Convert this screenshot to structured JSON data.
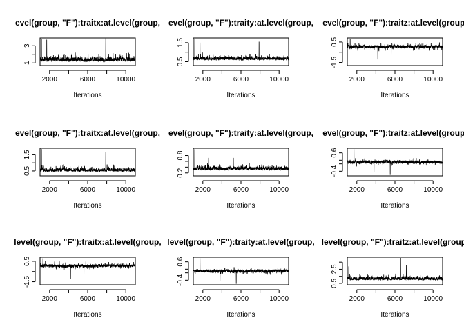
{
  "chart_data": [
    {
      "type": "line",
      "title": "evel(group, \"F\"):traitx:at.level(group,",
      "xlabel": "Iterations",
      "ylabel": "",
      "xlim": [
        1000,
        11000
      ],
      "ylim": [
        0.7,
        3.9
      ],
      "x_ticks": [
        2000,
        6000,
        10000
      ],
      "x_tick_labels": [
        "2000",
        "6000",
        "10000"
      ],
      "y_ticks": [
        1,
        2,
        3
      ],
      "y_tick_labels": [
        "1",
        "",
        "3"
      ],
      "trace": {
        "base": 1.25,
        "noise": 0.35,
        "spike_rate": 0.06,
        "spike_size": 1.3,
        "skew": "up",
        "floor": 0.85
      },
      "spikes": [
        {
          "x": 1150,
          "y": 3.8
        },
        {
          "x": 1700,
          "y": 3.7
        },
        {
          "x": 7900,
          "y": 3.85
        }
      ],
      "series": [
        {
          "x_start": 1001,
          "x_end": 11000,
          "y_estimated_summary": {
            "min": 0.85,
            "median": 1.2,
            "max": 3.85
          }
        }
      ]
    },
    {
      "type": "line",
      "title": "evel(group, \"F\"):traity:at.level(group,",
      "xlabel": "Iterations",
      "ylabel": "",
      "xlim": [
        1000,
        11000
      ],
      "ylim": [
        0.3,
        1.75
      ],
      "x_ticks": [
        2000,
        6000,
        10000
      ],
      "x_tick_labels": [
        "2000",
        "6000",
        "10000"
      ],
      "y_ticks": [
        0.5,
        1.0,
        1.5
      ],
      "y_tick_labels": [
        "0.5",
        "",
        "1.5"
      ],
      "trace": {
        "base": 0.62,
        "noise": 0.12,
        "spike_rate": 0.06,
        "spike_size": 0.45,
        "skew": "up",
        "floor": 0.38
      },
      "spikes": [
        {
          "x": 1150,
          "y": 1.72
        },
        {
          "x": 1700,
          "y": 1.5
        },
        {
          "x": 7900,
          "y": 1.55
        }
      ],
      "series": [
        {
          "x_start": 1001,
          "x_end": 11000,
          "y_estimated_summary": {
            "min": 0.38,
            "median": 0.6,
            "max": 1.72
          }
        }
      ]
    },
    {
      "type": "line",
      "title": "evel(group, \"F\"):traitz:at.level(group,",
      "xlabel": "Iterations",
      "ylabel": "",
      "xlim": [
        1000,
        11000
      ],
      "ylim": [
        -1.8,
        0.9
      ],
      "x_ticks": [
        2000,
        6000,
        10000
      ],
      "x_tick_labels": [
        "2000",
        "6000",
        "10000"
      ],
      "y_ticks": [
        -1.5,
        -0.5,
        0.5
      ],
      "y_tick_labels": [
        "-1.5",
        "",
        "0.5"
      ],
      "trace": {
        "base": 0.05,
        "noise": 0.22,
        "spike_rate": 0.05,
        "spike_size": 0.7,
        "skew": "both",
        "floor": -1.75
      },
      "spikes": [
        {
          "x": 1300,
          "y": 0.8
        },
        {
          "x": 5600,
          "y": -1.75
        },
        {
          "x": 4200,
          "y": -1.2
        }
      ],
      "series": [
        {
          "x_start": 1001,
          "x_end": 11000,
          "y_estimated_summary": {
            "min": -1.75,
            "median": 0.05,
            "max": 0.8
          }
        }
      ]
    },
    {
      "type": "line",
      "title": "evel(group, \"F\"):traitx:at.level(group,",
      "xlabel": "Iterations",
      "ylabel": "",
      "xlim": [
        1000,
        11000
      ],
      "ylim": [
        0.2,
        1.9
      ],
      "x_ticks": [
        2000,
        6000,
        10000
      ],
      "x_tick_labels": [
        "2000",
        "6000",
        "10000"
      ],
      "y_ticks": [
        0.5,
        1.0,
        1.5
      ],
      "y_tick_labels": [
        "0.5",
        "",
        "1.5"
      ],
      "trace": {
        "base": 0.5,
        "noise": 0.13,
        "spike_rate": 0.06,
        "spike_size": 0.55,
        "skew": "up",
        "floor": 0.25
      },
      "spikes": [
        {
          "x": 1150,
          "y": 1.85
        },
        {
          "x": 7900,
          "y": 1.65
        }
      ],
      "series": [
        {
          "x_start": 1001,
          "x_end": 11000,
          "y_estimated_summary": {
            "min": 0.25,
            "median": 0.5,
            "max": 1.85
          }
        }
      ]
    },
    {
      "type": "line",
      "title": "evel(group, \"F\"):traity:at.level(group,",
      "xlabel": "Iterations",
      "ylabel": "",
      "xlim": [
        1000,
        11000
      ],
      "ylim": [
        0.1,
        1.05
      ],
      "x_ticks": [
        2000,
        6000,
        10000
      ],
      "x_tick_labels": [
        "2000",
        "6000",
        "10000"
      ],
      "y_ticks": [
        0.2,
        0.4,
        0.6,
        0.8
      ],
      "y_tick_labels": [
        "0.2",
        "",
        "",
        "0.8"
      ],
      "trace": {
        "base": 0.32,
        "noise": 0.08,
        "spike_rate": 0.06,
        "spike_size": 0.3,
        "skew": "up",
        "floor": 0.14
      },
      "spikes": [
        {
          "x": 1150,
          "y": 1.02
        },
        {
          "x": 2600,
          "y": 0.72
        },
        {
          "x": 5200,
          "y": 0.72
        }
      ],
      "series": [
        {
          "x_start": 1001,
          "x_end": 11000,
          "y_estimated_summary": {
            "min": 0.14,
            "median": 0.3,
            "max": 1.02
          }
        }
      ]
    },
    {
      "type": "line",
      "title": "evel(group, \"F\"):traitz:at.level(group,",
      "xlabel": "Iterations",
      "ylabel": "",
      "xlim": [
        1000,
        11000
      ],
      "ylim": [
        -0.65,
        0.85
      ],
      "x_ticks": [
        2000,
        6000,
        10000
      ],
      "x_tick_labels": [
        "2000",
        "6000",
        "10000"
      ],
      "y_ticks": [
        -0.4,
        0.0,
        0.2,
        0.6
      ],
      "y_tick_labels": [
        "-0.4",
        "",
        "",
        "0.6"
      ],
      "trace": {
        "base": 0.1,
        "noise": 0.13,
        "spike_rate": 0.05,
        "spike_size": 0.35,
        "skew": "both",
        "floor": -0.6
      },
      "spikes": [
        {
          "x": 1700,
          "y": 0.8
        },
        {
          "x": 5500,
          "y": -0.6
        },
        {
          "x": 3800,
          "y": -0.45
        }
      ],
      "series": [
        {
          "x_start": 1001,
          "x_end": 11000,
          "y_estimated_summary": {
            "min": -0.6,
            "median": 0.1,
            "max": 0.8
          }
        }
      ]
    },
    {
      "type": "line",
      "title": "level(group, \"F\"):traitx:at.level(group,",
      "xlabel": "Iterations",
      "ylabel": "",
      "xlim": [
        1000,
        11000
      ],
      "ylim": [
        -1.8,
        0.9
      ],
      "x_ticks": [
        2000,
        6000,
        10000
      ],
      "x_tick_labels": [
        "2000",
        "6000",
        "10000"
      ],
      "y_ticks": [
        -1.5,
        -0.5,
        0.5
      ],
      "y_tick_labels": [
        "-1.5",
        "",
        "0.5"
      ],
      "trace": {
        "base": 0.05,
        "noise": 0.22,
        "spike_rate": 0.05,
        "spike_size": 0.7,
        "skew": "both",
        "floor": -1.75
      },
      "spikes": [
        {
          "x": 1300,
          "y": 0.8
        },
        {
          "x": 5600,
          "y": -1.75
        },
        {
          "x": 4200,
          "y": -1.2
        }
      ],
      "series": [
        {
          "x_start": 1001,
          "x_end": 11000,
          "y_estimated_summary": {
            "min": -1.75,
            "median": 0.05,
            "max": 0.8
          }
        }
      ]
    },
    {
      "type": "line",
      "title": "level(group, \"F\"):traity:at.level(group,",
      "xlabel": "Iterations",
      "ylabel": "",
      "xlim": [
        1000,
        11000
      ],
      "ylim": [
        -0.65,
        0.85
      ],
      "x_ticks": [
        2000,
        6000,
        10000
      ],
      "x_tick_labels": [
        "2000",
        "6000",
        "10000"
      ],
      "y_ticks": [
        -0.4,
        0.0,
        0.2,
        0.6
      ],
      "y_tick_labels": [
        "-0.4",
        "",
        "",
        "0.6"
      ],
      "trace": {
        "base": 0.1,
        "noise": 0.13,
        "spike_rate": 0.05,
        "spike_size": 0.35,
        "skew": "both",
        "floor": -0.6
      },
      "spikes": [
        {
          "x": 1700,
          "y": 0.8
        },
        {
          "x": 5500,
          "y": -0.6
        },
        {
          "x": 3800,
          "y": -0.45
        }
      ],
      "series": [
        {
          "x_start": 1001,
          "x_end": 11000,
          "y_estimated_summary": {
            "min": -0.6,
            "median": 0.1,
            "max": 0.8
          }
        }
      ]
    },
    {
      "type": "line",
      "title": "level(group, \"F\"):traitz:at.level(group,",
      "xlabel": "Iterations",
      "ylabel": "",
      "xlim": [
        1000,
        11000
      ],
      "ylim": [
        0.3,
        4.2
      ],
      "x_ticks": [
        2000,
        6000,
        10000
      ],
      "x_tick_labels": [
        "2000",
        "6000",
        "10000"
      ],
      "y_ticks": [
        0.5,
        1.5,
        2.5,
        3.5
      ],
      "y_tick_labels": [
        "0.5",
        "",
        "2.5",
        ""
      ],
      "trace": {
        "base": 1.05,
        "noise": 0.3,
        "spike_rate": 0.06,
        "spike_size": 1.1,
        "skew": "up",
        "floor": 0.45
      },
      "spikes": [
        {
          "x": 6600,
          "y": 4.1
        },
        {
          "x": 7200,
          "y": 3.1
        },
        {
          "x": 1150,
          "y": 2.9
        }
      ],
      "series": [
        {
          "x_start": 1001,
          "x_end": 11000,
          "y_estimated_summary": {
            "min": 0.45,
            "median": 1.0,
            "max": 4.1
          }
        }
      ]
    }
  ]
}
